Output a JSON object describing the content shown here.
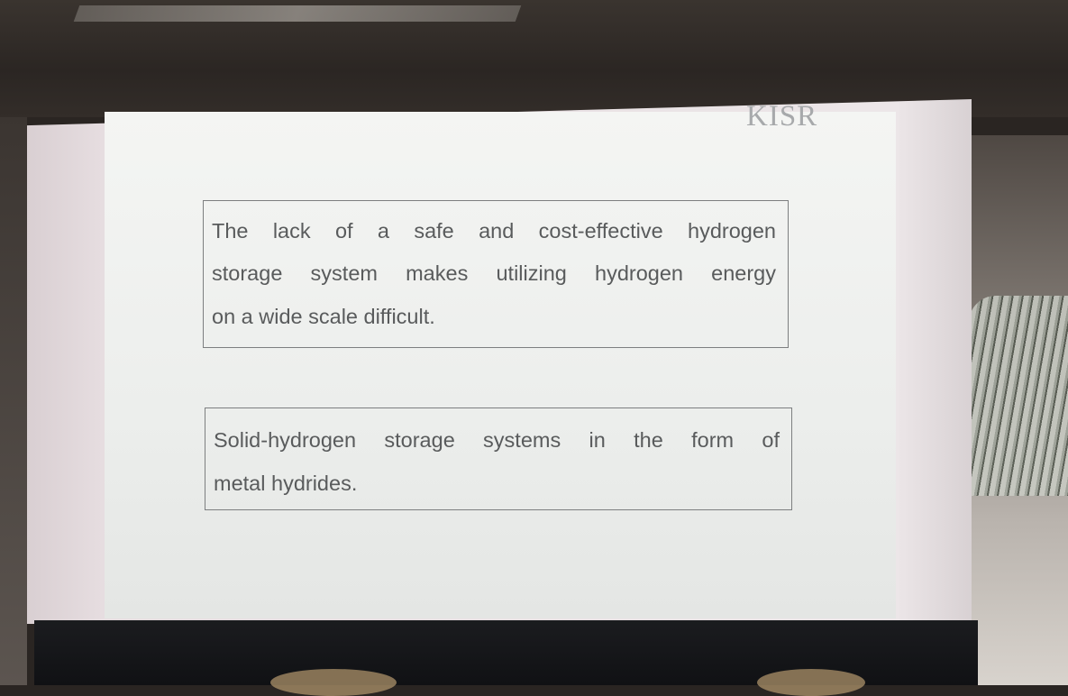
{
  "slide": {
    "logo": "KISR",
    "boxes": [
      {
        "lines": [
          "The lack of a safe and cost-effective hydrogen",
          "storage system makes utilizing hydrogen energy",
          "on a wide scale difficult."
        ]
      },
      {
        "lines": [
          "Solid-hydrogen storage systems in the form of",
          "metal hydrides."
        ]
      }
    ]
  }
}
